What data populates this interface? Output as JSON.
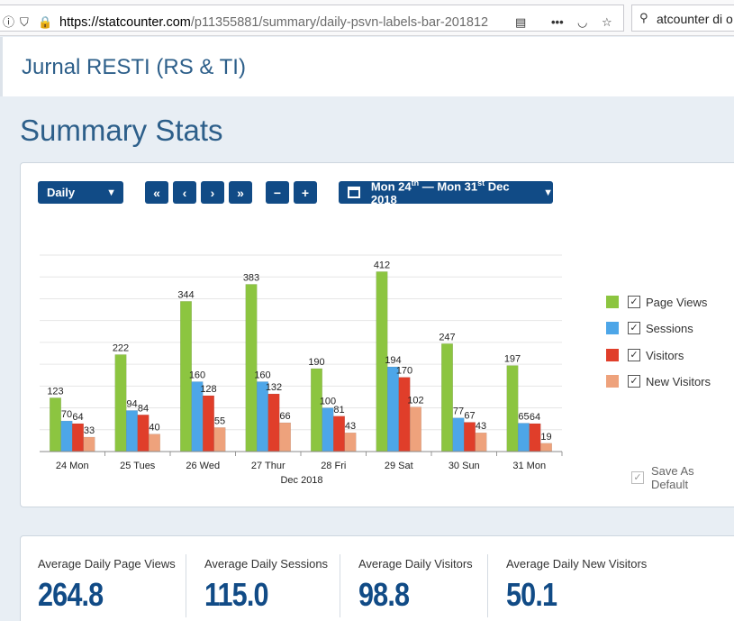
{
  "browser": {
    "url_host": "https://statcounter.com",
    "url_path": "/p11355881/summary/daily-psvn-labels-bar-201812",
    "search_text": "atcounter di o"
  },
  "site": {
    "title": "Jurnal RESTI (RS & TI)"
  },
  "page": {
    "title": "Summary Stats"
  },
  "controls": {
    "period": "Daily",
    "date_range": {
      "start_day": "Mon 24",
      "start_sup": "th",
      "sep": " — Mon 31",
      "end_sup": "st",
      "end_rest": " Dec 2018"
    }
  },
  "legend": [
    {
      "label": "Page Views",
      "color": "#8cc540"
    },
    {
      "label": "Sessions",
      "color": "#4da6e8"
    },
    {
      "label": "Visitors",
      "color": "#e03e2a"
    },
    {
      "label": "New Visitors",
      "color": "#eea27c"
    }
  ],
  "save_default": "Save As Default",
  "chart_data": {
    "type": "bar",
    "categories": [
      "24 Mon",
      "25 Tues",
      "26 Wed",
      "27 Thur",
      "28 Fri",
      "29 Sat",
      "30 Sun",
      "31 Mon"
    ],
    "xlabel": "Dec 2018",
    "ylim": [
      0,
      450
    ],
    "grid": true,
    "legend_position": "right",
    "series": [
      {
        "name": "Page Views",
        "color": "#8cc540",
        "values": [
          123,
          222,
          344,
          383,
          190,
          412,
          247,
          197
        ]
      },
      {
        "name": "Sessions",
        "color": "#4da6e8",
        "values": [
          70,
          94,
          160,
          160,
          100,
          194,
          77,
          65
        ]
      },
      {
        "name": "Visitors",
        "color": "#e03e2a",
        "values": [
          64,
          84,
          128,
          132,
          81,
          170,
          67,
          64
        ]
      },
      {
        "name": "New Visitors",
        "color": "#eea27c",
        "values": [
          33,
          40,
          55,
          66,
          43,
          102,
          43,
          19
        ]
      }
    ]
  },
  "stats": [
    {
      "label": "Average Daily Page Views",
      "value": "264.8"
    },
    {
      "label": "Average Daily Sessions",
      "value": "115.0"
    },
    {
      "label": "Average Daily Visitors",
      "value": "98.8"
    },
    {
      "label": "Average Daily New Visitors",
      "value": "50.1"
    }
  ]
}
